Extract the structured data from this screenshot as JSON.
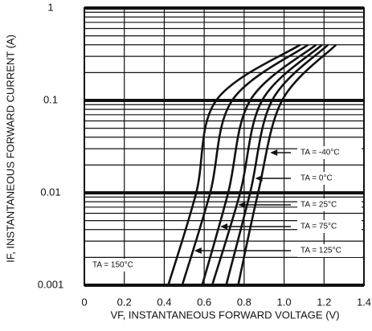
{
  "chart_data": {
    "type": "line",
    "x_label": "VF, INSTANTANEOUS FORWARD VOLTAGE (V)",
    "y_label": "IF, INSTANTANEOUS FORWARD CURRENT (A)",
    "xlim": [
      0,
      1.4
    ],
    "ylim": [
      0.001,
      1
    ],
    "log_y": true,
    "grid": true,
    "xticks": [
      0,
      0.2,
      0.4,
      0.6,
      0.8,
      {
        "value": 1,
        "label": "1.0"
      },
      1.2,
      1.4
    ],
    "yticks": [
      0.001,
      0.01,
      0.1,
      1
    ],
    "series": [
      {
        "name": "TA = -40°C",
        "color": "#111111",
        "x": [
          0.77,
          0.87,
          0.99,
          1.26
        ],
        "values": [
          0.001,
          0.01,
          0.1,
          0.4
        ]
      },
      {
        "name": "TA = 0°C",
        "color": "#111111",
        "x": [
          0.71,
          0.83,
          0.94,
          1.22
        ],
        "values": [
          0.001,
          0.01,
          0.1,
          0.4
        ]
      },
      {
        "name": "TA = 25°C",
        "color": "#111111",
        "x": [
          0.64,
          0.78,
          0.89,
          1.19
        ],
        "values": [
          0.001,
          0.01,
          0.1,
          0.4
        ]
      },
      {
        "name": "TA = 75°C",
        "color": "#111111",
        "x": [
          0.59,
          0.72,
          0.83,
          1.16
        ],
        "values": [
          0.001,
          0.01,
          0.1,
          0.4
        ]
      },
      {
        "name": "TA = 125°C",
        "color": "#111111",
        "x": [
          0.49,
          0.63,
          0.74,
          1.12
        ],
        "values": [
          0.001,
          0.01,
          0.1,
          0.4
        ]
      },
      {
        "name": "TA = 150°C",
        "color": "#111111",
        "x": [
          0.42,
          0.56,
          0.66,
          1.08
        ],
        "values": [
          0.001,
          0.01,
          0.1,
          0.4
        ]
      }
    ]
  }
}
